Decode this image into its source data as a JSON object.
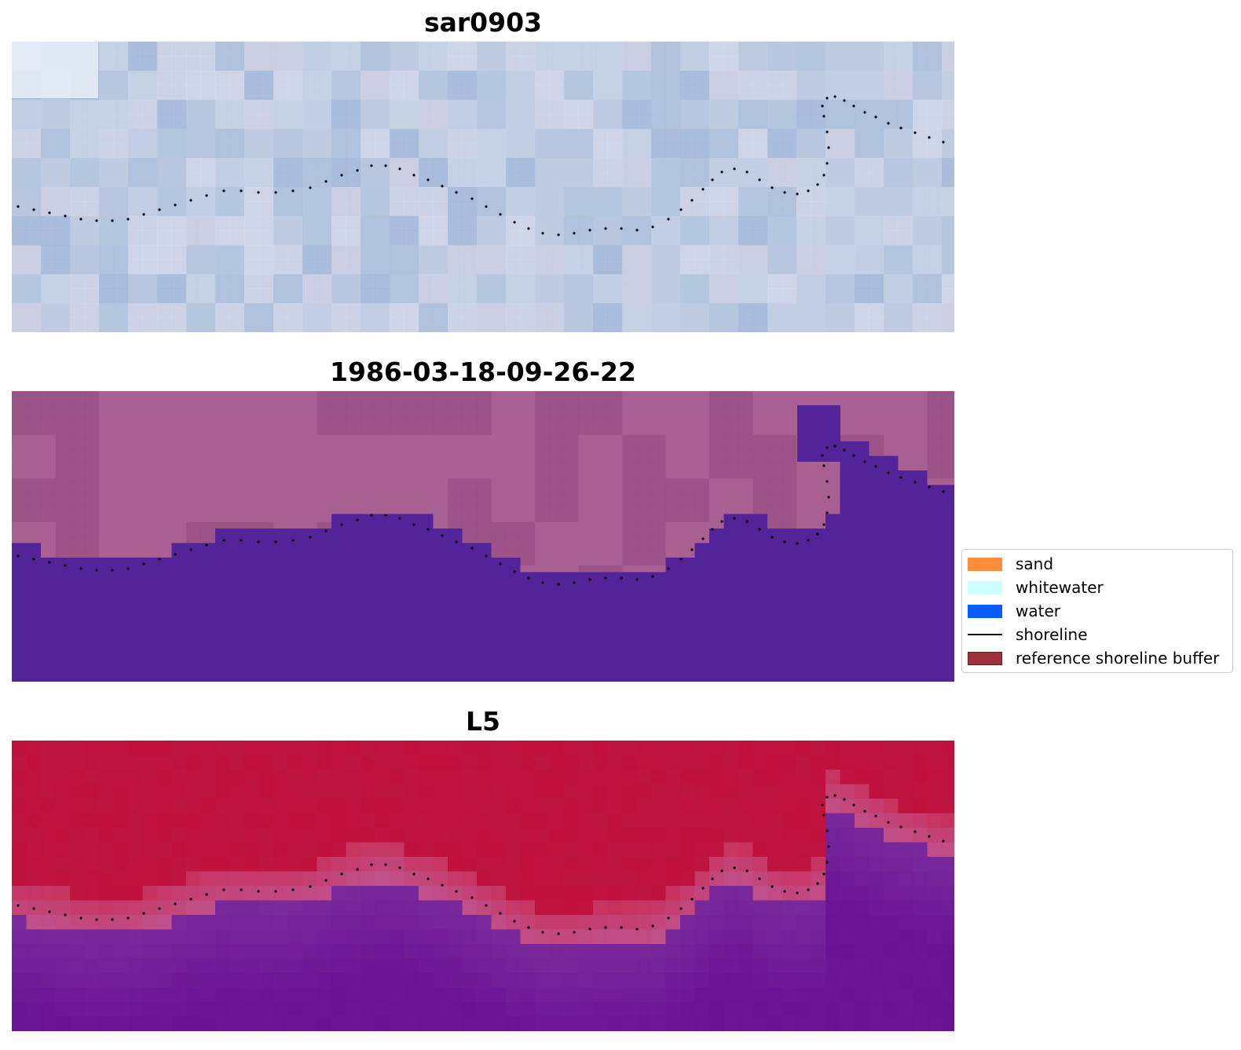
{
  "panels": [
    {
      "title": "sar0903"
    },
    {
      "title": "1986-03-18-09-26-22"
    },
    {
      "title": "L5"
    }
  ],
  "legend": {
    "items": [
      {
        "label": "sand",
        "kind": "patch",
        "color": "#ff8c3a"
      },
      {
        "label": "whitewater",
        "kind": "patch",
        "color": "#ccffff"
      },
      {
        "label": "water",
        "kind": "patch",
        "color": "#0a5cff"
      },
      {
        "label": "shoreline",
        "kind": "line",
        "color": "#000000"
      },
      {
        "label": "reference shoreline buffer",
        "kind": "patch",
        "color": "#a0303a"
      }
    ]
  },
  "colors": {
    "sar_base": "#b9c8df",
    "classified_land": "#a45a8c",
    "classified_water": "#53239a",
    "l5_land": "#c0103c",
    "l5_water": "#6a1596",
    "l5_boundary": "#c0508a"
  }
}
